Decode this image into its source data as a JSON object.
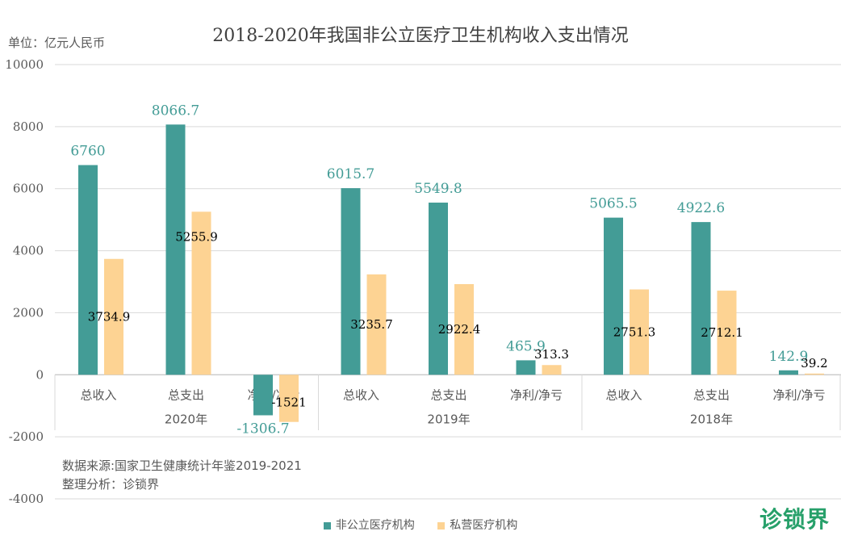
{
  "title": "2018-2020年我国非公立医疗卫生机构收入支出情况",
  "unit": "单位：亿元人民币",
  "source_lines": [
    "数据来源:国家卫生健康统计年鉴2019-2021",
    "整理分析：诊锁界"
  ],
  "logo_text": "诊锁界",
  "colors": {
    "series1": "#439c96",
    "series2": "#fdd393",
    "label1": "#439c96",
    "label2": "#000000",
    "grid": "#d9d9d9",
    "axis_text": "#595959"
  },
  "chart_data": {
    "type": "bar",
    "title": "2018-2020年我国非公立医疗卫生机构收入支出情况",
    "ylabel": "单位：亿元人民币",
    "ylim": [
      -4000,
      10000
    ],
    "yticks": [
      -4000,
      -2000,
      0,
      2000,
      4000,
      6000,
      8000,
      10000
    ],
    "grid": true,
    "legend_position": "bottom",
    "groups": [
      "2020年",
      "2019年",
      "2018年"
    ],
    "categories": [
      "总收入",
      "总支出",
      "净利/净亏",
      "总收入",
      "总支出",
      "净利/净亏",
      "总收入",
      "总支出",
      "净利/净亏"
    ],
    "series": [
      {
        "name": "非公立医疗机构",
        "values": [
          6760,
          8066.7,
          -1306.7,
          6015.7,
          5549.8,
          465.9,
          5065.5,
          4922.6,
          142.9
        ]
      },
      {
        "name": "私营医疗机构",
        "values": [
          3734.9,
          5255.9,
          -1521,
          3235.7,
          2922.4,
          313.3,
          2751.3,
          2712.1,
          39.2
        ]
      }
    ],
    "data_labels": {
      "series1": [
        "6760",
        "8066.7",
        "-1306.7",
        "6015.7",
        "5549.8",
        "465.9",
        "5065.5",
        "4922.6",
        "142.9"
      ],
      "series2": [
        "3734.9",
        "5255.9",
        "-1521",
        "3235.7",
        "2922.4",
        "313.3",
        "2751.3",
        "2712.1",
        "39.2"
      ]
    }
  }
}
